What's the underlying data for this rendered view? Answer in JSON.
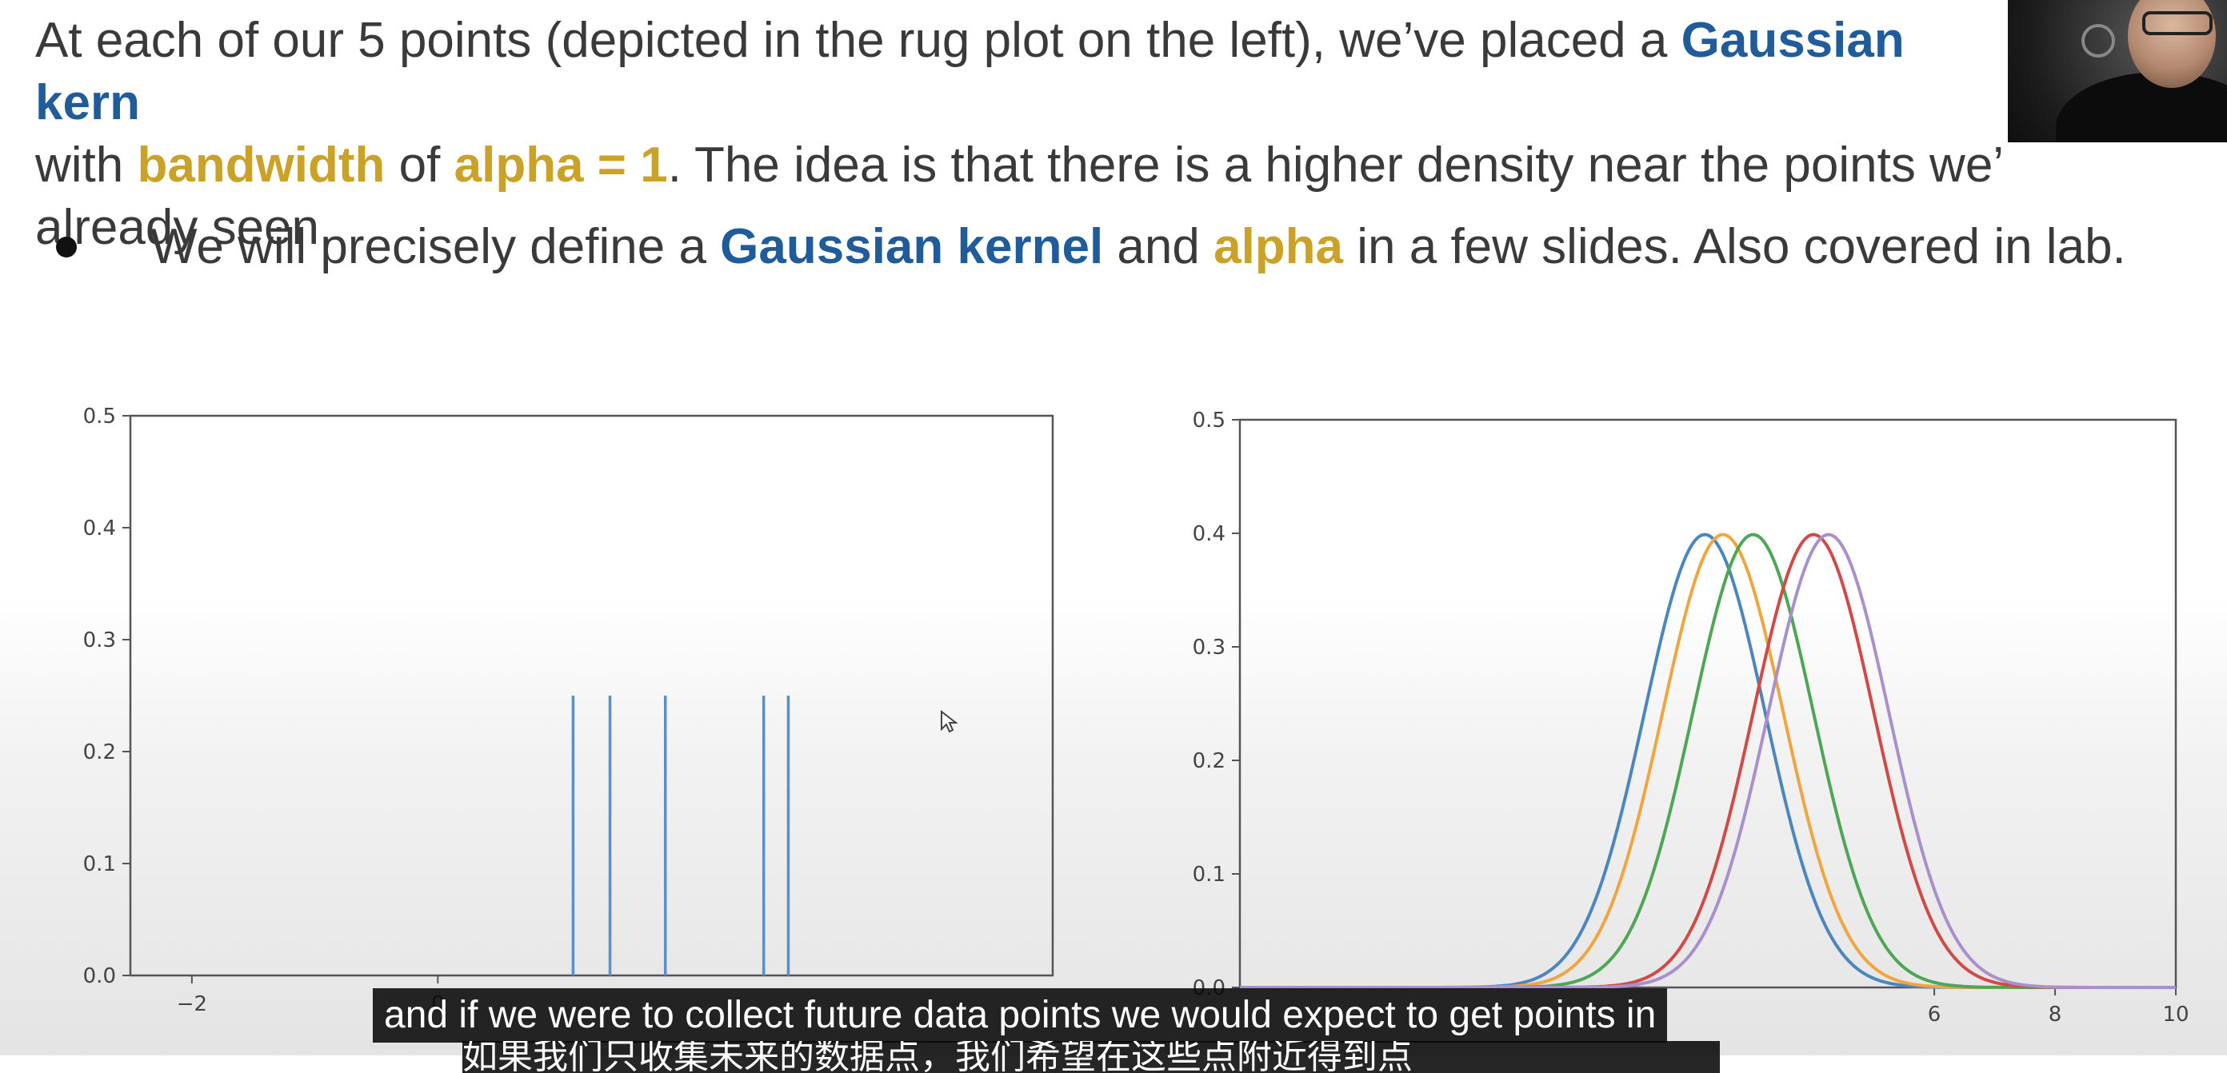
{
  "slide": {
    "para": {
      "p1": "At each of our 5 points (depicted in the rug plot on the left), we’ve placed a ",
      "kern": "Gaussian kern",
      "p2": "with ",
      "bandwidth": "bandwidth",
      "p3": " of ",
      "alpha_eq": "alpha = 1",
      "p4": ". The idea is that there is a higher density near the points we’",
      "p5": "already seen."
    },
    "bullet": {
      "b1": "We will precisely define a ",
      "gk": "Gaussian kernel",
      "b2": " and ",
      "alpha": "alpha",
      "b3": " in a few slides. Also covered in lab."
    }
  },
  "colors": {
    "blue": "#1f5c99",
    "gold": "#c9a227",
    "rug": "#5b8fc7",
    "kernels": [
      "#4c86c0",
      "#f0a640",
      "#4fa654",
      "#d14a45",
      "#a98fcc"
    ]
  },
  "webcam": {
    "icon": "presenter-webcam-icon"
  },
  "cursor": {
    "icon": "mouse-pointer-icon"
  },
  "chart_data": [
    {
      "type": "rug",
      "x": [
        1.1,
        1.4,
        1.85,
        2.65,
        2.85
      ],
      "rug_height": 0.25,
      "xlim": [
        -2.5,
        5
      ],
      "ylim": [
        0,
        0.5
      ],
      "xticks": [
        -2,
        0
      ],
      "yticks": [
        "0.0",
        "0.1",
        "0.2",
        "0.3",
        "0.4",
        "0.5"
      ],
      "grid": false
    },
    {
      "type": "line",
      "kernel": "gaussian",
      "alpha": 1,
      "centers": [
        2.2,
        2.5,
        3.0,
        4.0,
        4.25
      ],
      "x_range": [
        -5.5,
        10
      ],
      "xlim": [
        -5.5,
        10
      ],
      "ylim": [
        0,
        0.5
      ],
      "xticks": [
        "6",
        "8",
        "10"
      ],
      "yticks": [
        "0.0",
        "0.1",
        "0.2",
        "0.3",
        "0.4",
        "0.5"
      ],
      "grid": false
    }
  ],
  "captions": {
    "line1": "and if we were to collect future data points we would expect to get points in",
    "line2": "如果我们只收集未来的数据点，我们希望在这些点附近得到点"
  }
}
